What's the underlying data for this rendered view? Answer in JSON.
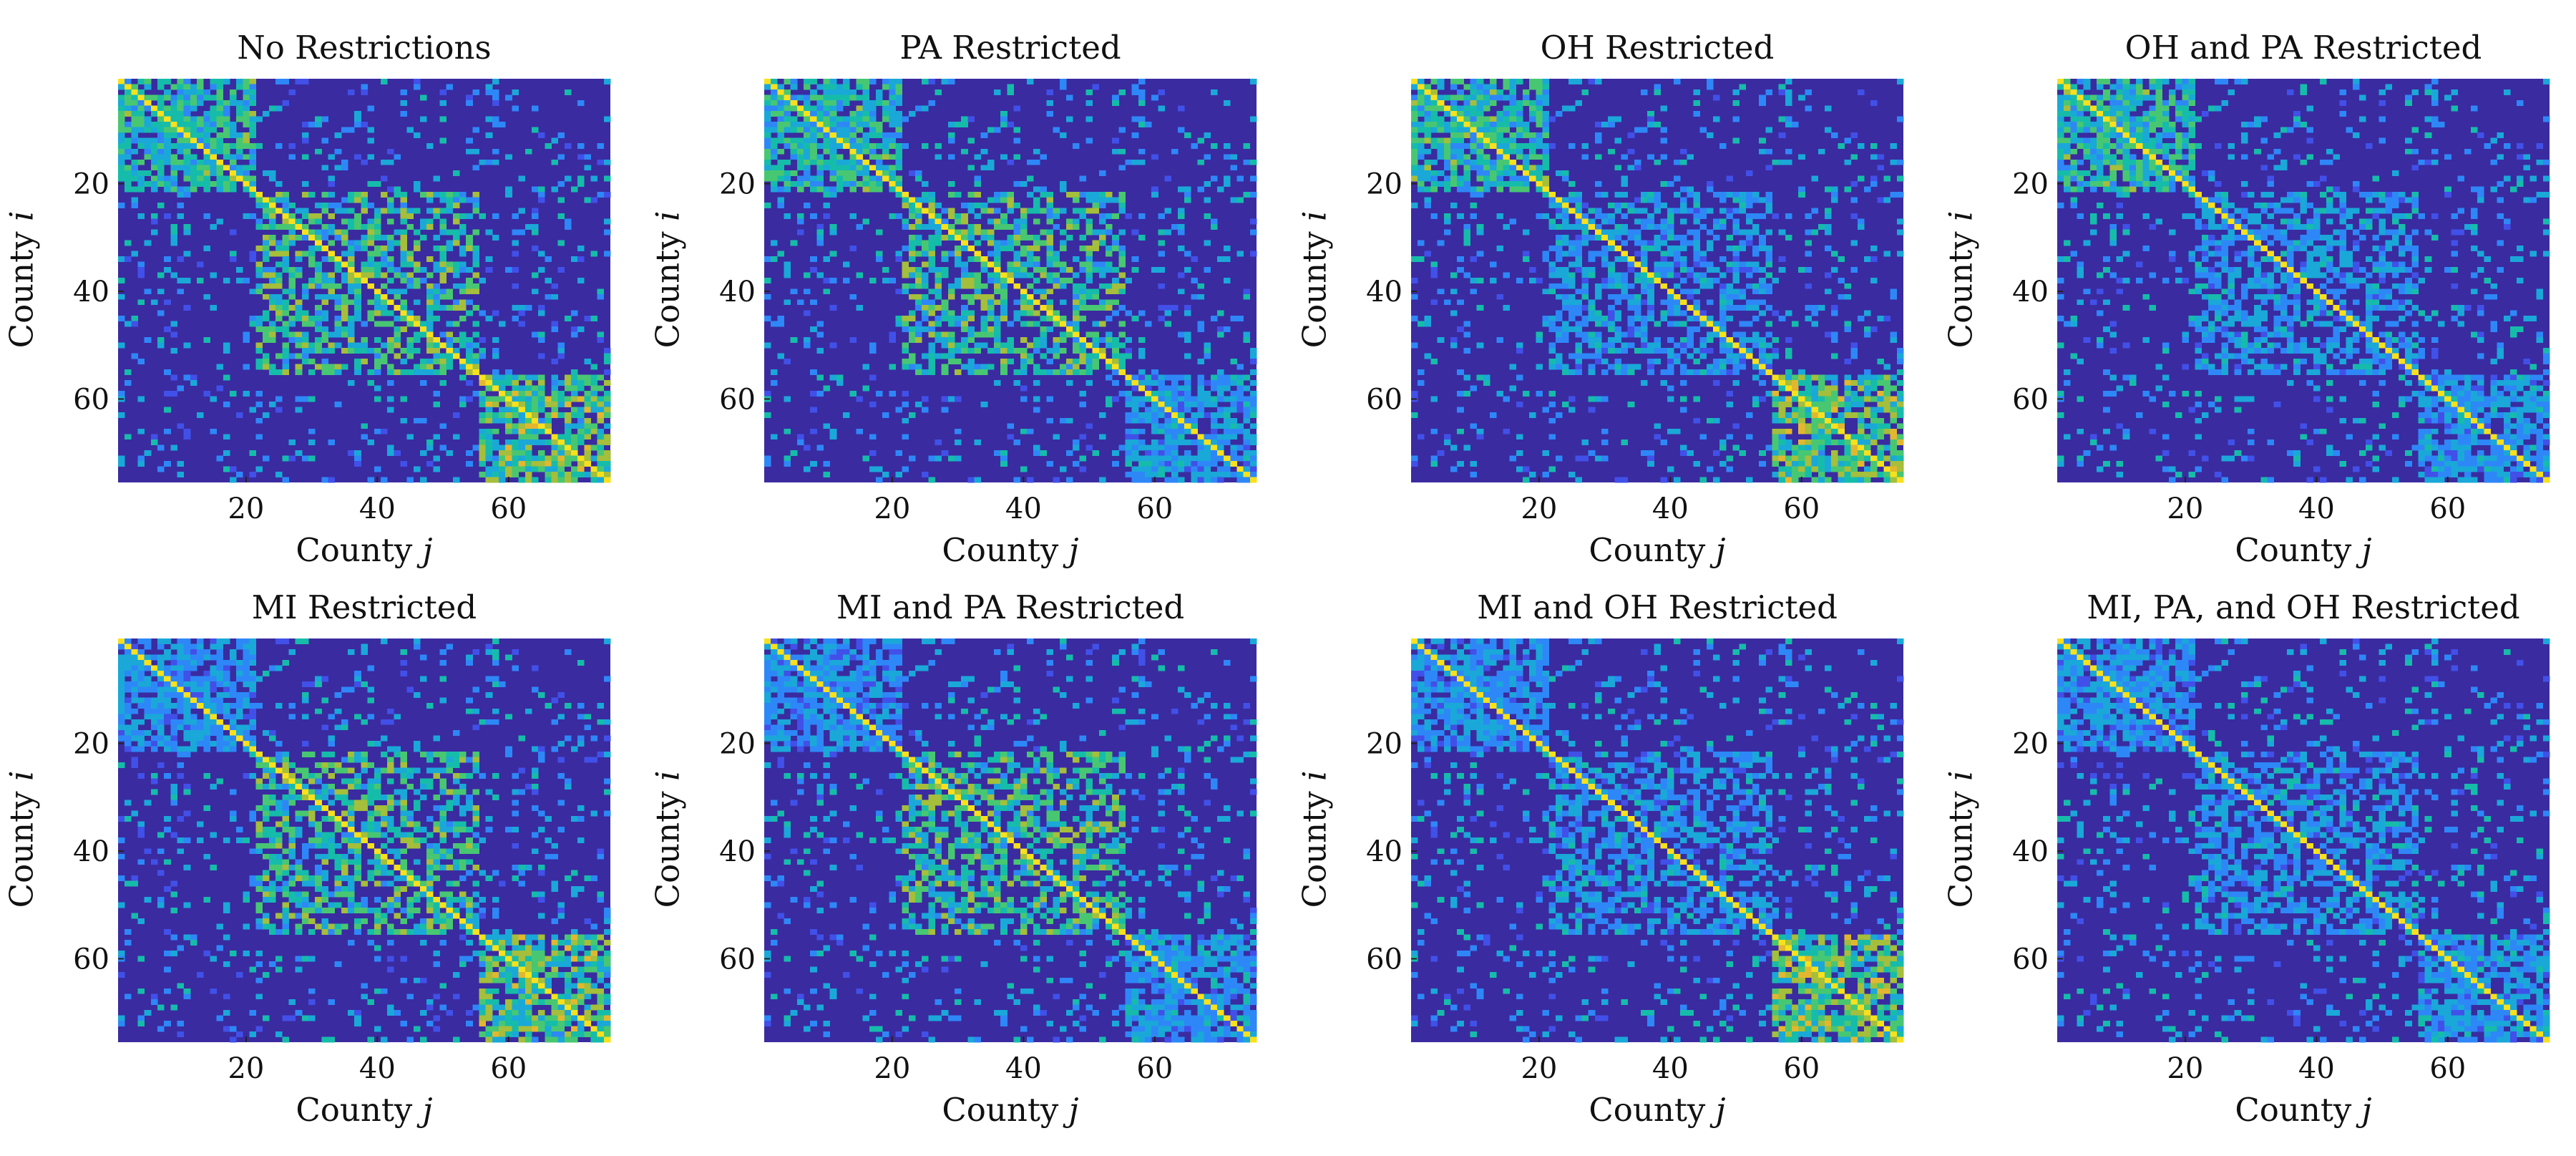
{
  "figure": {
    "colors": {
      "background": "#3a2ba0",
      "colormap": [
        "#3e26a8",
        "#4150e8",
        "#2e87f7",
        "#1aa8d8",
        "#16bcaa",
        "#48c772",
        "#a5be3b",
        "#e2b72f",
        "#f8e11c"
      ]
    }
  },
  "chart_data": [
    {
      "type": "heatmap",
      "title": "No Restrictions",
      "xlabel": "County",
      "xlabel_var": "j",
      "ylabel": "County",
      "ylabel_var": "i",
      "xticks": [
        20,
        40,
        60
      ],
      "yticks": [
        20,
        40,
        60
      ],
      "n": 75,
      "blocks": [
        {
          "name": "block-1",
          "range": [
            1,
            21
          ]
        },
        {
          "name": "block-2",
          "range": [
            22,
            55
          ]
        },
        {
          "name": "block-3",
          "range": [
            56,
            75
          ]
        }
      ],
      "block_intensity": [
        0.45,
        0.5,
        0.55
      ],
      "restricted_blocks": []
    },
    {
      "type": "heatmap",
      "title": "PA Restricted",
      "xlabel": "County",
      "xlabel_var": "j",
      "ylabel": "County",
      "ylabel_var": "i",
      "xticks": [
        20,
        40,
        60
      ],
      "yticks": [
        20,
        40,
        60
      ],
      "n": 75,
      "blocks": [
        {
          "name": "block-1",
          "range": [
            1,
            21
          ]
        },
        {
          "name": "block-2",
          "range": [
            22,
            55
          ]
        },
        {
          "name": "block-3",
          "range": [
            56,
            75
          ]
        }
      ],
      "block_intensity": [
        0.45,
        0.5,
        0.3
      ],
      "restricted_blocks": [
        "PA"
      ]
    },
    {
      "type": "heatmap",
      "title": "OH Restricted",
      "xlabel": "County",
      "xlabel_var": "j",
      "ylabel": "County",
      "ylabel_var": "i",
      "xticks": [
        20,
        40,
        60
      ],
      "yticks": [
        20,
        40,
        60
      ],
      "n": 75,
      "blocks": [
        {
          "name": "block-1",
          "range": [
            1,
            21
          ]
        },
        {
          "name": "block-2",
          "range": [
            22,
            55
          ]
        },
        {
          "name": "block-3",
          "range": [
            56,
            75
          ]
        }
      ],
      "block_intensity": [
        0.45,
        0.3,
        0.55
      ],
      "restricted_blocks": [
        "OH"
      ]
    },
    {
      "type": "heatmap",
      "title": "OH and PA Restricted",
      "xlabel": "County",
      "xlabel_var": "j",
      "ylabel": "County",
      "ylabel_var": "i",
      "xticks": [
        20,
        40,
        60
      ],
      "yticks": [
        20,
        40,
        60
      ],
      "n": 75,
      "blocks": [
        {
          "name": "block-1",
          "range": [
            1,
            21
          ]
        },
        {
          "name": "block-2",
          "range": [
            22,
            55
          ]
        },
        {
          "name": "block-3",
          "range": [
            56,
            75
          ]
        }
      ],
      "block_intensity": [
        0.45,
        0.3,
        0.3
      ],
      "restricted_blocks": [
        "OH",
        "PA"
      ]
    },
    {
      "type": "heatmap",
      "title": "MI Restricted",
      "xlabel": "County",
      "xlabel_var": "j",
      "ylabel": "County",
      "ylabel_var": "i",
      "xticks": [
        20,
        40,
        60
      ],
      "yticks": [
        20,
        40,
        60
      ],
      "n": 75,
      "blocks": [
        {
          "name": "block-1",
          "range": [
            1,
            21
          ]
        },
        {
          "name": "block-2",
          "range": [
            22,
            55
          ]
        },
        {
          "name": "block-3",
          "range": [
            56,
            75
          ]
        }
      ],
      "block_intensity": [
        0.28,
        0.5,
        0.55
      ],
      "restricted_blocks": [
        "MI"
      ]
    },
    {
      "type": "heatmap",
      "title": "MI and PA Restricted",
      "xlabel": "County",
      "xlabel_var": "j",
      "ylabel": "County",
      "ylabel_var": "i",
      "xticks": [
        20,
        40,
        60
      ],
      "yticks": [
        20,
        40,
        60
      ],
      "n": 75,
      "blocks": [
        {
          "name": "block-1",
          "range": [
            1,
            21
          ]
        },
        {
          "name": "block-2",
          "range": [
            22,
            55
          ]
        },
        {
          "name": "block-3",
          "range": [
            56,
            75
          ]
        }
      ],
      "block_intensity": [
        0.28,
        0.5,
        0.3
      ],
      "restricted_blocks": [
        "MI",
        "PA"
      ]
    },
    {
      "type": "heatmap",
      "title": "MI and OH Restricted",
      "xlabel": "County",
      "xlabel_var": "j",
      "ylabel": "County",
      "ylabel_var": "i",
      "xticks": [
        20,
        40,
        60
      ],
      "yticks": [
        20,
        40,
        60
      ],
      "n": 75,
      "blocks": [
        {
          "name": "block-1",
          "range": [
            1,
            21
          ]
        },
        {
          "name": "block-2",
          "range": [
            22,
            55
          ]
        },
        {
          "name": "block-3",
          "range": [
            56,
            75
          ]
        }
      ],
      "block_intensity": [
        0.28,
        0.3,
        0.55
      ],
      "restricted_blocks": [
        "MI",
        "OH"
      ]
    },
    {
      "type": "heatmap",
      "title": "MI, PA, and OH Restricted",
      "xlabel": "County",
      "xlabel_var": "j",
      "ylabel": "County",
      "ylabel_var": "i",
      "xticks": [
        20,
        40,
        60
      ],
      "yticks": [
        20,
        40,
        60
      ],
      "n": 75,
      "blocks": [
        {
          "name": "block-1",
          "range": [
            1,
            21
          ]
        },
        {
          "name": "block-2",
          "range": [
            22,
            55
          ]
        },
        {
          "name": "block-3",
          "range": [
            56,
            75
          ]
        }
      ],
      "block_intensity": [
        0.28,
        0.3,
        0.3
      ],
      "restricted_blocks": [
        "MI",
        "PA",
        "OH"
      ]
    }
  ]
}
